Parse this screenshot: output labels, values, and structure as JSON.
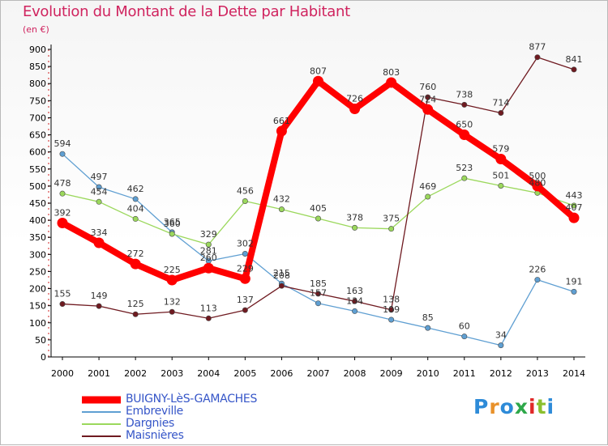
{
  "title": "Evolution du Montant de la Dette par Habitant",
  "unit": "(en €)",
  "logo": {
    "text": "Proxiti",
    "colors": [
      "#2e8bd8",
      "#e8912a",
      "#2e8bd8",
      "#2ea84a",
      "#e02828",
      "#8bbf2e",
      "#2e8bd8"
    ]
  },
  "chart_data": {
    "type": "line",
    "title": "Evolution du Montant de la Dette par Habitant",
    "ylabel": "(en €)",
    "xlabel": "",
    "x": [
      "2000",
      "2001",
      "2002",
      "2003",
      "2004",
      "2005",
      "2006",
      "2007",
      "2008",
      "2009",
      "2010",
      "2011",
      "2012",
      "2013",
      "2014"
    ],
    "ylim": [
      0,
      900
    ],
    "yticks": [
      0,
      50,
      100,
      150,
      200,
      250,
      300,
      350,
      400,
      450,
      500,
      550,
      600,
      650,
      700,
      750,
      800,
      850,
      900
    ],
    "grid": false,
    "legend_position": "bottom-left",
    "series": [
      {
        "name": "BUIGNY-LèS-GAMACHES",
        "color": "#ff0000",
        "values": [
          392,
          334,
          272,
          225,
          260,
          229,
          661,
          807,
          726,
          803,
          724,
          650,
          579,
          500,
          407
        ]
      },
      {
        "name": "Embreville",
        "color": "#5f9fd2",
        "values": [
          594,
          497,
          462,
          365,
          281,
          302,
          215,
          157,
          134,
          109,
          85,
          60,
          34,
          226,
          191
        ]
      },
      {
        "name": "Dargnies",
        "color": "#9bd85c",
        "values": [
          478,
          454,
          404,
          360,
          329,
          456,
          432,
          405,
          378,
          375,
          469,
          523,
          501,
          480,
          443
        ]
      },
      {
        "name": "Maisnières",
        "color": "#6f1a20",
        "values": [
          155,
          149,
          125,
          132,
          113,
          137,
          208,
          185,
          163,
          138,
          760,
          738,
          714,
          877,
          841
        ]
      }
    ]
  }
}
